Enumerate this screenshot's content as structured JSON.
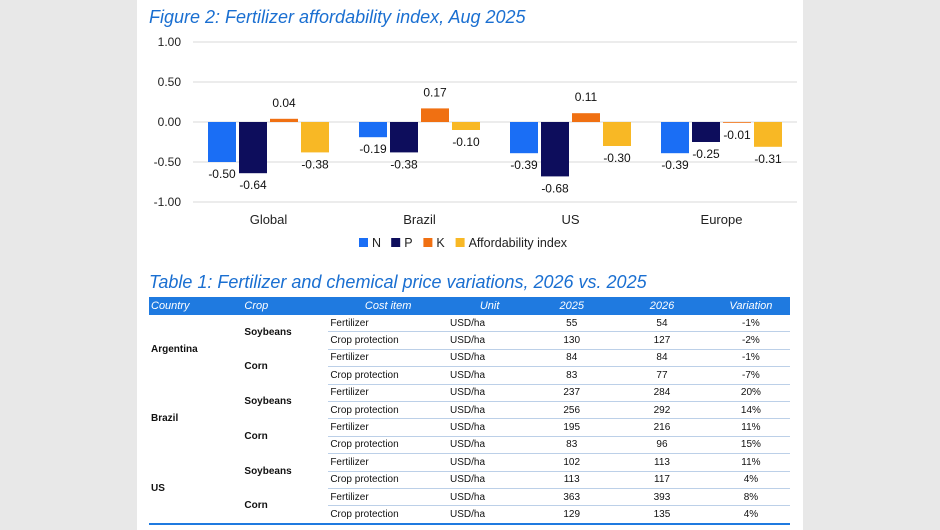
{
  "chart_data": {
    "type": "bar",
    "title": "Figure 2: Fertilizer affordability index, Aug 2025",
    "categories": [
      "Global",
      "Brazil",
      "US",
      "Europe"
    ],
    "series": [
      {
        "name": "N",
        "color": "#1a6ef5",
        "values": [
          -0.5,
          -0.19,
          -0.39,
          -0.39
        ],
        "labels": [
          "-0.50",
          "-0.19",
          "-0.39",
          "-0.39"
        ]
      },
      {
        "name": "P",
        "color": "#0d0d5c",
        "values": [
          -0.64,
          -0.38,
          -0.68,
          -0.25
        ],
        "labels": [
          "-0.64",
          "-0.38",
          "-0.68",
          "-0.25"
        ]
      },
      {
        "name": "K",
        "color": "#f07012",
        "values": [
          0.04,
          0.17,
          0.11,
          -0.01
        ],
        "labels": [
          "0.04",
          "0.17",
          "0.11",
          "-0.01"
        ]
      },
      {
        "name": "Affordability index",
        "color": "#f8b825",
        "values": [
          -0.38,
          -0.1,
          -0.3,
          -0.31
        ],
        "labels": [
          "-0.38",
          "-0.10",
          "-0.30",
          "-0.31"
        ]
      }
    ],
    "yticks": [
      "1.00",
      "0.50",
      "0.00",
      "-0.50",
      "-1.00"
    ],
    "ytick_values": [
      1.0,
      0.5,
      0.0,
      -0.5,
      -1.0
    ],
    "ylim": [
      -1.0,
      1.0
    ],
    "grid": true,
    "legend": "bottom"
  },
  "table": {
    "title": "Table 1: Fertilizer and chemical price variations, 2026 vs. 2025",
    "headers": [
      "Country",
      "Crop",
      "Cost item",
      "Unit",
      "2025",
      "2026",
      "Variation"
    ],
    "groups": [
      {
        "country": "Argentina",
        "crops": [
          {
            "crop": "Soybeans",
            "rows": [
              {
                "item": "Fertilizer",
                "unit": "USD/ha",
                "y2025": "55",
                "y2026": "54",
                "variation": "-1%"
              },
              {
                "item": "Crop protection",
                "unit": "USD/ha",
                "y2025": "130",
                "y2026": "127",
                "variation": "-2%"
              }
            ]
          },
          {
            "crop": "Corn",
            "rows": [
              {
                "item": "Fertilizer",
                "unit": "USD/ha",
                "y2025": "84",
                "y2026": "84",
                "variation": "-1%"
              },
              {
                "item": "Crop protection",
                "unit": "USD/ha",
                "y2025": "83",
                "y2026": "77",
                "variation": "-7%"
              }
            ]
          }
        ]
      },
      {
        "country": "Brazil",
        "crops": [
          {
            "crop": "Soybeans",
            "rows": [
              {
                "item": "Fertilizer",
                "unit": "USD/ha",
                "y2025": "237",
                "y2026": "284",
                "variation": "20%"
              },
              {
                "item": "Crop protection",
                "unit": "USD/ha",
                "y2025": "256",
                "y2026": "292",
                "variation": "14%"
              }
            ]
          },
          {
            "crop": "Corn",
            "rows": [
              {
                "item": "Fertilizer",
                "unit": "USD/ha",
                "y2025": "195",
                "y2026": "216",
                "variation": "11%"
              },
              {
                "item": "Crop protection",
                "unit": "USD/ha",
                "y2025": "83",
                "y2026": "96",
                "variation": "15%"
              }
            ]
          }
        ]
      },
      {
        "country": "US",
        "crops": [
          {
            "crop": "Soybeans",
            "rows": [
              {
                "item": "Fertilizer",
                "unit": "USD/ha",
                "y2025": "102",
                "y2026": "113",
                "variation": "11%"
              },
              {
                "item": "Crop protection",
                "unit": "USD/ha",
                "y2025": "113",
                "y2026": "117",
                "variation": "4%"
              }
            ]
          },
          {
            "crop": "Corn",
            "rows": [
              {
                "item": "Fertilizer",
                "unit": "USD/ha",
                "y2025": "363",
                "y2026": "393",
                "variation": "8%"
              },
              {
                "item": "Crop protection",
                "unit": "USD/ha",
                "y2025": "129",
                "y2026": "135",
                "variation": "4%"
              }
            ]
          }
        ]
      }
    ]
  }
}
